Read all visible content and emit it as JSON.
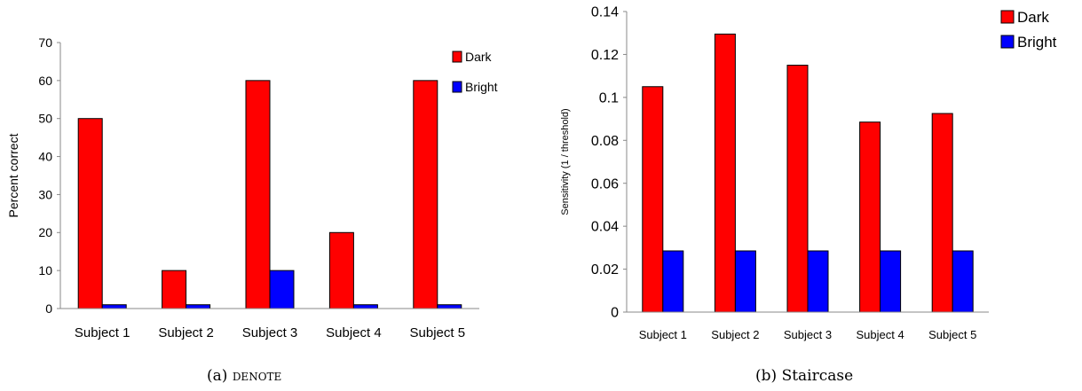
{
  "chart_data": [
    {
      "type": "bar",
      "caption_label": "(a)",
      "caption_name": "denote",
      "categories": [
        "Subject 1",
        "Subject 2",
        "Subject 3",
        "Subject 4",
        "Subject 5"
      ],
      "series": [
        {
          "name": "Dark",
          "color": "#ff0000",
          "values": [
            50,
            10,
            60,
            20,
            60
          ]
        },
        {
          "name": "Bright",
          "color": "#0000ff",
          "values": [
            1,
            1,
            10,
            1,
            1
          ]
        }
      ],
      "ylabel": "Percent correct",
      "ylim": [
        0,
        70
      ],
      "yticks": [
        "0",
        "10",
        "20",
        "30",
        "40",
        "50",
        "60",
        "70"
      ],
      "grid": false,
      "legend": "top-right"
    },
    {
      "type": "bar",
      "caption_label": "(b)",
      "caption_name": "Staircase",
      "categories": [
        "Subject 1",
        "Subject 2",
        "Subject 3",
        "Subject 4",
        "Subject 5"
      ],
      "series": [
        {
          "name": "Dark",
          "color": "#ff0000",
          "values": [
            0.105,
            0.1295,
            0.115,
            0.0885,
            0.0925
          ]
        },
        {
          "name": "Bright",
          "color": "#0000ff",
          "values": [
            0.0285,
            0.0285,
            0.0285,
            0.0285,
            0.0285
          ]
        }
      ],
      "ylabel": "Sensitivity (1 / threshold)",
      "ylim": [
        0,
        0.14
      ],
      "yticks": [
        "0",
        "0.02",
        "0.04",
        "0.06",
        "0.08",
        "0.1",
        "0.12",
        "0.14"
      ],
      "grid": false,
      "legend": "top-right"
    }
  ]
}
